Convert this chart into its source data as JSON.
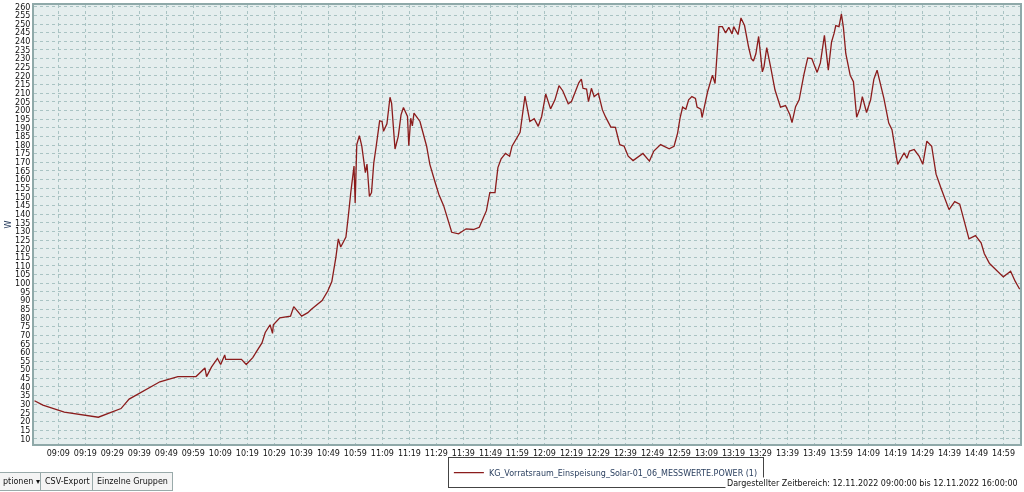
{
  "chart_data": {
    "type": "line",
    "ylabel": "W",
    "x": [
      9.003,
      9.055,
      9.187,
      9.397,
      9.537,
      9.587,
      9.777,
      9.888,
      10.0,
      10.055,
      10.065,
      10.095,
      10.132,
      10.152,
      10.177,
      10.183,
      10.28,
      10.31,
      10.35,
      10.407,
      10.427,
      10.457,
      10.472,
      10.477,
      10.517,
      10.583,
      10.603,
      10.652,
      10.69,
      10.712,
      10.778,
      10.813,
      10.838,
      10.863,
      10.878,
      10.893,
      10.925,
      10.94,
      10.955,
      10.975,
      10.982,
      10.992,
      11.008,
      11.023,
      11.045,
      11.055,
      11.07,
      11.083,
      11.097,
      11.112,
      11.133,
      11.148,
      11.157,
      11.178,
      11.197,
      11.207,
      11.228,
      11.248,
      11.265,
      11.28,
      11.305,
      11.313,
      11.325,
      11.335,
      11.345,
      11.382,
      11.423,
      11.443,
      11.473,
      11.498,
      11.528,
      11.578,
      11.62,
      11.667,
      11.712,
      11.748,
      11.792,
      11.813,
      11.845,
      11.863,
      11.883,
      11.91,
      11.935,
      11.95,
      12.0,
      12.03,
      12.06,
      12.087,
      12.112,
      12.133,
      12.158,
      12.188,
      12.215,
      12.24,
      12.263,
      12.297,
      12.317,
      12.337,
      12.362,
      12.378,
      12.388,
      12.41,
      12.422,
      12.44,
      12.457,
      12.483,
      12.508,
      12.528,
      12.56,
      12.588,
      12.615,
      12.642,
      12.667,
      12.697,
      12.758,
      12.798,
      12.825,
      12.867,
      12.92,
      12.95,
      12.972,
      12.987,
      13.003,
      13.023,
      13.04,
      13.06,
      13.082,
      13.092,
      13.115,
      13.123,
      13.157,
      13.187,
      13.203,
      13.227,
      13.248,
      13.268,
      13.288,
      13.308,
      13.318,
      13.345,
      13.363,
      13.385,
      13.41,
      13.427,
      13.44,
      13.455,
      13.472,
      13.495,
      13.505,
      13.522,
      13.548,
      13.573,
      13.607,
      13.638,
      13.665,
      13.678,
      13.7,
      13.722,
      13.752,
      13.775,
      13.8,
      13.833,
      13.853,
      13.878,
      13.902,
      13.922,
      13.938,
      13.948,
      13.968,
      13.983,
      13.995,
      14.01,
      14.037,
      14.057,
      14.077,
      14.098,
      14.112,
      14.138,
      14.163,
      14.183,
      14.203,
      14.245,
      14.275,
      14.295,
      14.33,
      14.37,
      14.387,
      14.403,
      14.432,
      14.462,
      14.485,
      14.51,
      14.54,
      14.567,
      14.6,
      14.647,
      14.682,
      14.713,
      14.77,
      14.81,
      14.845,
      14.865,
      14.897,
      14.982,
      15.027,
      15.055,
      15.083
    ],
    "series": [
      {
        "name": "KG_Vorratsraum_Einspeisung_Solar-01_06_MESSWERTE.POWER (1)",
        "color": "#8b1c1c",
        "values": [
          32,
          29.5,
          25.5,
          22.5,
          27.5,
          33,
          43,
          46,
          46,
          51,
          46,
          51.5,
          56.5,
          53,
          58.5,
          56,
          56,
          53,
          57,
          65.5,
          71.5,
          76,
          71,
          76,
          80,
          81,
          86.5,
          81,
          83,
          85,
          90,
          95.5,
          101,
          115,
          125.7,
          121,
          126.7,
          139,
          152.5,
          167.8,
          146.4,
          180.2,
          185.4,
          179.3,
          164,
          169,
          150.2,
          152.5,
          169.7,
          179.3,
          194,
          193.6,
          187.9,
          192.3,
          207.6,
          204.1,
          177.7,
          185,
          197.4,
          201.7,
          196.5,
          179.6,
          195.5,
          191.1,
          198.4,
          193.6,
          179.3,
          168.8,
          159.2,
          151.5,
          144.9,
          129.5,
          128.6,
          131.5,
          131.1,
          132.4,
          142,
          152.5,
          152.5,
          166.9,
          172,
          175.1,
          173.5,
          179.3,
          187.3,
          208.3,
          193.6,
          195.2,
          190.8,
          196.5,
          209.5,
          200.9,
          206.1,
          214.3,
          211.4,
          203.8,
          205.1,
          209.9,
          216,
          218.1,
          212.8,
          212.4,
          205.1,
          212.8,
          208,
          209.9,
          200.3,
          196.1,
          190.4,
          190.2,
          180.2,
          179.3,
          173.5,
          171,
          175.1,
          170.7,
          176.5,
          180.2,
          177.8,
          179.3,
          186.9,
          195.5,
          201.9,
          200.7,
          206.1,
          208,
          207,
          201.9,
          200.7,
          195.9,
          210.8,
          220.4,
          215.6,
          248.5,
          248.5,
          244.9,
          248.1,
          244.3,
          248.5,
          243.9,
          253.5,
          249.1,
          236.7,
          230,
          228.6,
          232.8,
          242.8,
          222.3,
          225.2,
          236.3,
          224.2,
          211.8,
          201.9,
          202.8,
          197.5,
          193,
          202.2,
          206.1,
          221,
          230.4,
          230,
          222,
          227.5,
          243.4,
          223.3,
          239.6,
          244.7,
          249.1,
          248.5,
          255.8,
          248.1,
          232.8,
          220.4,
          216.6,
          196.1,
          201.3,
          208,
          198.8,
          206.1,
          218,
          223.3,
          207,
          192.7,
          188.9,
          168.8,
          175.5,
          172.3,
          176.5,
          177.4,
          173.6,
          168.8,
          182.2,
          179.3,
          163.1,
          154.4,
          142.6,
          147.2,
          145.8,
          125.7,
          127.6,
          123.4,
          117.1,
          111.4,
          103.7,
          106.9,
          101.2,
          96.6
        ]
      }
    ],
    "xlim": [
      9,
      15.085
    ],
    "ylim": [
      7,
      261
    ],
    "xticks": [
      {
        "value": 9.15,
        "label": "09:09"
      },
      {
        "value": 9.317,
        "label": "09:19"
      },
      {
        "value": 9.483,
        "label": "09:29"
      },
      {
        "value": 9.65,
        "label": "09:39"
      },
      {
        "value": 9.817,
        "label": "09:49"
      },
      {
        "value": 9.983,
        "label": "09:59"
      },
      {
        "value": 10.15,
        "label": "10:09"
      },
      {
        "value": 10.317,
        "label": "10:19"
      },
      {
        "value": 10.483,
        "label": "10:29"
      },
      {
        "value": 10.65,
        "label": "10:39"
      },
      {
        "value": 10.817,
        "label": "10:49"
      },
      {
        "value": 10.983,
        "label": "10:59"
      },
      {
        "value": 11.15,
        "label": "11:09"
      },
      {
        "value": 11.317,
        "label": "11:19"
      },
      {
        "value": 11.483,
        "label": "11:29"
      },
      {
        "value": 11.65,
        "label": "11:39"
      },
      {
        "value": 11.817,
        "label": "11:49"
      },
      {
        "value": 11.983,
        "label": "11:59"
      },
      {
        "value": 12.15,
        "label": "12:09"
      },
      {
        "value": 12.317,
        "label": "12:19"
      },
      {
        "value": 12.483,
        "label": "12:29"
      },
      {
        "value": 12.65,
        "label": "12:39"
      },
      {
        "value": 12.817,
        "label": "12:49"
      },
      {
        "value": 12.983,
        "label": "12:59"
      },
      {
        "value": 13.15,
        "label": "13:09"
      },
      {
        "value": 13.317,
        "label": "13:19"
      },
      {
        "value": 13.483,
        "label": "13:29"
      },
      {
        "value": 13.65,
        "label": "13:39"
      },
      {
        "value": 13.817,
        "label": "13:49"
      },
      {
        "value": 13.983,
        "label": "13:59"
      },
      {
        "value": 14.15,
        "label": "14:09"
      },
      {
        "value": 14.317,
        "label": "14:19"
      },
      {
        "value": 14.483,
        "label": "14:29"
      },
      {
        "value": 14.65,
        "label": "14:39"
      },
      {
        "value": 14.817,
        "label": "14:49"
      },
      {
        "value": 14.983,
        "label": "14:59"
      }
    ],
    "yticks": [
      10,
      15,
      20,
      25,
      30,
      35,
      40,
      45,
      50,
      55,
      60,
      65,
      70,
      75,
      80,
      85,
      90,
      95,
      100,
      105,
      110,
      115,
      120,
      125,
      130,
      135,
      140,
      145,
      150,
      155,
      160,
      165,
      170,
      175,
      180,
      185,
      190,
      195,
      200,
      205,
      210,
      215,
      220,
      225,
      230,
      235,
      240,
      245,
      250,
      255,
      260
    ],
    "grid": true,
    "legend": "bottom",
    "marker": "none",
    "line_style": "solid",
    "annotations": [
      "ptionen ▾",
      "CSV-Export",
      "Einzelne Gruppen",
      "Dargestellter Zeitbereich: 12.11.2022 09:00:00 bis 12.11.2022 16:00:00"
    ]
  }
}
